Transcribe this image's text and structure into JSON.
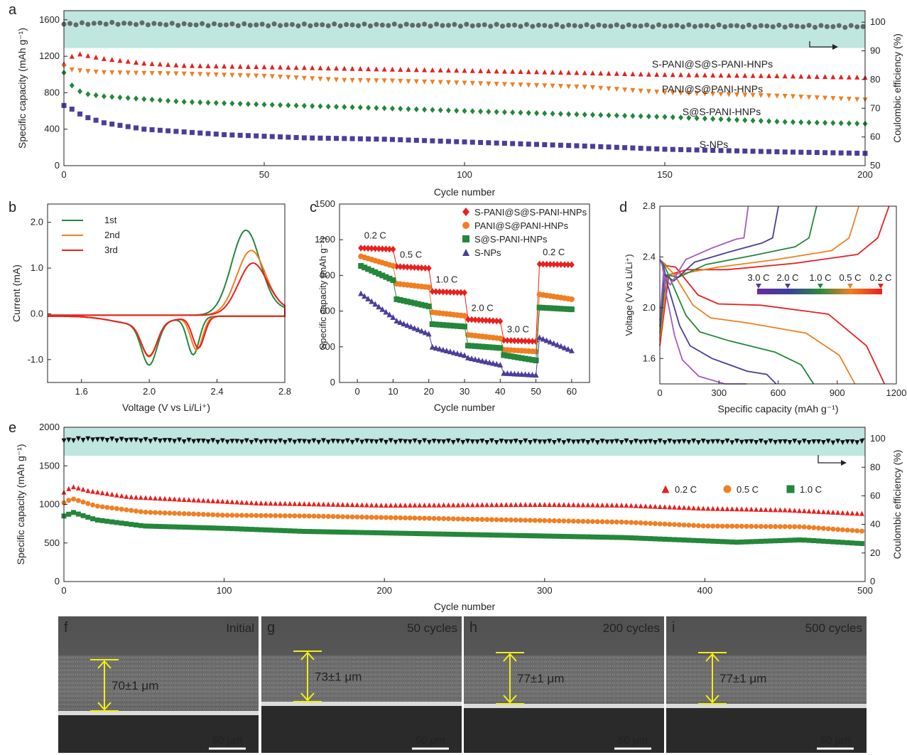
{
  "colors": {
    "red": "#e8201e",
    "orange": "#f07f22",
    "green": "#24873a",
    "purple": "#4b3e9a",
    "gray": "#606a66",
    "black": "#111111",
    "band": "#bfe6df",
    "violet": "#a55bc2",
    "yellow": "#f2ee1a"
  },
  "chart_data": [
    {
      "panel": "a",
      "type": "scatter",
      "xlabel": "Cycle number",
      "ylabel": "Specific capacity (mAh g⁻¹)",
      "y2label": "Coulombic efficiency (%)",
      "xlim": [
        0,
        200
      ],
      "ylim": [
        0,
        1700
      ],
      "y2lim": [
        50,
        104
      ],
      "xticks": [
        "0",
        "50",
        "100",
        "150",
        "200"
      ],
      "yticks": [
        "0",
        "400",
        "800",
        "1200",
        "1600"
      ],
      "y2ticks": [
        "50",
        "60",
        "70",
        "80",
        "90",
        "100"
      ],
      "efficiency_band": [
        91,
        104
      ],
      "series": [
        {
          "name": "S-PANI@S@S-PANI-HNPs",
          "marker": "triangle",
          "color": "red",
          "points": [
            [
              0,
              1120
            ],
            [
              2,
              1200
            ],
            [
              3,
              1235
            ],
            [
              5,
              1215
            ],
            [
              10,
              1175
            ],
            [
              20,
              1125
            ],
            [
              30,
              1100
            ],
            [
              50,
              1085
            ],
            [
              80,
              1060
            ],
            [
              100,
              1045
            ],
            [
              130,
              1020
            ],
            [
              150,
              1000
            ],
            [
              180,
              985
            ],
            [
              200,
              970
            ]
          ]
        },
        {
          "name": "PANI@S@PANI-HNPs",
          "marker": "triangle-down",
          "color": "orange",
          "points": [
            [
              0,
              1090
            ],
            [
              2,
              1050
            ],
            [
              5,
              1035
            ],
            [
              10,
              1020
            ],
            [
              30,
              1005
            ],
            [
              50,
              980
            ],
            [
              70,
              935
            ],
            [
              80,
              930
            ],
            [
              100,
              905
            ],
            [
              130,
              860
            ],
            [
              150,
              800
            ],
            [
              180,
              760
            ],
            [
              200,
              720
            ]
          ]
        },
        {
          "name": "S@S-PANI-HNPs",
          "marker": "diamond",
          "color": "green",
          "points": [
            [
              0,
              1020
            ],
            [
              1,
              920
            ],
            [
              3,
              840
            ],
            [
              5,
              790
            ],
            [
              10,
              760
            ],
            [
              30,
              700
            ],
            [
              50,
              670
            ],
            [
              80,
              630
            ],
            [
              100,
              600
            ],
            [
              130,
              560
            ],
            [
              150,
              535
            ],
            [
              180,
              480
            ],
            [
              200,
              460
            ]
          ]
        },
        {
          "name": "S-NPs",
          "marker": "square",
          "color": "purple",
          "points": [
            [
              0,
              660
            ],
            [
              2,
              620
            ],
            [
              5,
              540
            ],
            [
              10,
              470
            ],
            [
              20,
              400
            ],
            [
              40,
              340
            ],
            [
              60,
              305
            ],
            [
              80,
              290
            ],
            [
              100,
              260
            ],
            [
              130,
              215
            ],
            [
              150,
              180
            ],
            [
              180,
              150
            ],
            [
              200,
              135
            ]
          ]
        },
        {
          "name": "Coulombic efficiency",
          "axis": "y2",
          "marker": "circle",
          "color": "gray",
          "points": [
            [
              0,
              99.3
            ],
            [
              10,
              99.6
            ],
            [
              30,
              99.2
            ],
            [
              60,
              99.0
            ],
            [
              90,
              99.0
            ],
            [
              120,
              98.8
            ],
            [
              160,
              98.7
            ],
            [
              200,
              98.5
            ]
          ]
        }
      ],
      "labels": [
        "S-PANI@S@S-PANI-HNPs",
        "PANI@S@PANI-HNPs",
        "S@S-PANI-HNPs",
        "S-NPs"
      ]
    },
    {
      "panel": "b",
      "type": "line",
      "xlabel": "Voltage (V vs Li/Li⁺)",
      "ylabel": "Current (mA)",
      "xlim": [
        1.4,
        2.8
      ],
      "ylim": [
        -1.5,
        2.4
      ],
      "xticks": [
        "1.6",
        "2.0",
        "2.4",
        "2.8"
      ],
      "yticks": [
        "-1.0",
        "0.0",
        "1.0",
        "2.0"
      ],
      "series": [
        {
          "name": "1st",
          "color": "green",
          "peaks": {
            "anodic": [
              2.57,
              1.85
            ],
            "cathodic": [
              [
                2.0,
                -0.9
              ],
              [
                2.26,
                -0.82
              ]
            ]
          }
        },
        {
          "name": "2nd",
          "color": "orange",
          "peaks": {
            "anodic": [
              2.6,
              1.4
            ],
            "cathodic": [
              [
                2.0,
                -0.72
              ],
              [
                2.28,
                -0.72
              ]
            ]
          }
        },
        {
          "name": "3rd",
          "color": "red",
          "peaks": {
            "anodic": [
              2.61,
              1.12
            ],
            "cathodic": [
              [
                2.0,
                -0.7
              ],
              [
                2.29,
                -0.68
              ]
            ]
          }
        }
      ]
    },
    {
      "panel": "c",
      "type": "scatter",
      "xlabel": "Cycle number",
      "ylabel": "Specific capacity (mAh g⁻¹)",
      "xlim": [
        -5,
        65
      ],
      "ylim": [
        0,
        1500
      ],
      "xticks": [
        "0",
        "10",
        "20",
        "30",
        "40",
        "50",
        "60"
      ],
      "yticks": [
        "0",
        "300",
        "600",
        "900",
        "1200",
        "1500"
      ],
      "rate_labels": [
        "0.2 C",
        "0.5 C",
        "1.0 C",
        "2.0 C",
        "3.0 C",
        "0.2 C"
      ],
      "series": [
        {
          "name": "S-PANI@S@S-PANI-HNPs",
          "marker": "diamond",
          "color": "red",
          "segments": [
            [
              1130,
              1120
            ],
            [
              975,
              960
            ],
            [
              765,
              755
            ],
            [
              530,
              515
            ],
            [
              355,
              345
            ],
            [
              995,
              990
            ]
          ]
        },
        {
          "name": "PANI@S@PANI-HNPs",
          "marker": "circle",
          "color": "orange",
          "segments": [
            [
              1060,
              980
            ],
            [
              830,
              800
            ],
            [
              590,
              560
            ],
            [
              400,
              370
            ],
            [
              275,
              260
            ],
            [
              740,
              700
            ]
          ]
        },
        {
          "name": "S@S-PANI-HNPs",
          "marker": "square",
          "color": "green",
          "segments": [
            [
              980,
              860
            ],
            [
              700,
              640
            ],
            [
              490,
              470
            ],
            [
              310,
              290
            ],
            [
              230,
              185
            ],
            [
              630,
              615
            ]
          ]
        },
        {
          "name": "S-NPs",
          "marker": "triangle",
          "color": "purple",
          "segments": [
            [
              750,
              550
            ],
            [
              520,
              410
            ],
            [
              300,
              230
            ],
            [
              210,
              150
            ],
            [
              80,
              65
            ],
            [
              380,
              270
            ]
          ]
        }
      ]
    },
    {
      "panel": "d",
      "type": "line",
      "xlabel": "Specific capacity (mAh g⁻¹)",
      "ylabel": "Voltage (V vs Li/Li⁺)",
      "xlim": [
        0,
        1200
      ],
      "ylim": [
        1.4,
        2.8
      ],
      "xticks": [
        "0",
        "300",
        "600",
        "900",
        "1200"
      ],
      "yticks": [
        "1.6",
        "2.0",
        "2.4",
        "2.8"
      ],
      "rate_labels": [
        "3.0 C",
        "2.0 C",
        "1.0 C",
        "0.5 C",
        "0.2 C"
      ],
      "series": [
        {
          "name": "0.2 C",
          "color": "red",
          "capacity": 1140
        },
        {
          "name": "0.5 C",
          "color": "orange",
          "capacity": 990
        },
        {
          "name": "1.0 C",
          "color": "green",
          "capacity": 780
        },
        {
          "name": "2.0 C",
          "color": "purple",
          "capacity": 590
        },
        {
          "name": "3.0 C",
          "color": "violet",
          "capacity": 440
        }
      ]
    },
    {
      "panel": "e",
      "type": "scatter",
      "xlabel": "Cycle number",
      "ylabel": "Specific capacity (mAh g⁻¹)",
      "y2label": "Coulombic efficiency (%)",
      "xlim": [
        0,
        500
      ],
      "ylim": [
        0,
        2000
      ],
      "y2lim": [
        0,
        108
      ],
      "xticks": [
        "0",
        "100",
        "200",
        "300",
        "400",
        "500"
      ],
      "yticks": [
        "0",
        "500",
        "1000",
        "1500",
        "2000"
      ],
      "y2ticks": [
        "0",
        "20",
        "40",
        "60",
        "80",
        "100"
      ],
      "efficiency_band": [
        88,
        108
      ],
      "series": [
        {
          "name": "0.2 C",
          "marker": "triangle",
          "color": "red",
          "points": [
            [
              0,
              1160
            ],
            [
              5,
              1235
            ],
            [
              15,
              1180
            ],
            [
              40,
              1100
            ],
            [
              80,
              1060
            ],
            [
              120,
              1020
            ],
            [
              200,
              990
            ],
            [
              300,
              1000
            ],
            [
              350,
              990
            ],
            [
              400,
              950
            ],
            [
              450,
              930
            ],
            [
              500,
              880
            ]
          ]
        },
        {
          "name": "0.5 C",
          "marker": "circle",
          "color": "orange",
          "points": [
            [
              0,
              1020
            ],
            [
              5,
              1075
            ],
            [
              20,
              980
            ],
            [
              50,
              900
            ],
            [
              100,
              860
            ],
            [
              150,
              850
            ],
            [
              200,
              830
            ],
            [
              300,
              790
            ],
            [
              350,
              770
            ],
            [
              400,
              720
            ],
            [
              460,
              710
            ],
            [
              500,
              650
            ]
          ]
        },
        {
          "name": "1.0 C",
          "marker": "square",
          "color": "green",
          "points": [
            [
              0,
              850
            ],
            [
              6,
              895
            ],
            [
              20,
              800
            ],
            [
              50,
              720
            ],
            [
              100,
              690
            ],
            [
              150,
              650
            ],
            [
              200,
              630
            ],
            [
              300,
              590
            ],
            [
              350,
              570
            ],
            [
              420,
              510
            ],
            [
              460,
              540
            ],
            [
              500,
              490
            ]
          ]
        },
        {
          "name": "Coulombic efficiency",
          "axis": "y2",
          "marker": "triangle-down",
          "color": "black",
          "points": [
            [
              0,
              98.5
            ],
            [
              10,
              99.5
            ],
            [
              100,
              98.0
            ],
            [
              200,
              98.0
            ],
            [
              300,
              97.8
            ],
            [
              400,
              97.8
            ],
            [
              500,
              97.6
            ]
          ]
        }
      ]
    }
  ],
  "panel_letters": [
    "a",
    "b",
    "c",
    "d",
    "e",
    "f",
    "g",
    "h",
    "i"
  ],
  "sem": [
    {
      "letter": "f",
      "title": "Initial",
      "thickness": "70±1 μm",
      "scalebar": "50 μm"
    },
    {
      "letter": "g",
      "title": "50 cycles",
      "thickness": "73±1 μm",
      "scalebar": "50 μm"
    },
    {
      "letter": "h",
      "title": "200 cycles",
      "thickness": "77±1 μm",
      "scalebar": "50 μm"
    },
    {
      "letter": "i",
      "title": "500 cycles",
      "thickness": "77±1 μm",
      "scalebar": "50 μm"
    }
  ]
}
